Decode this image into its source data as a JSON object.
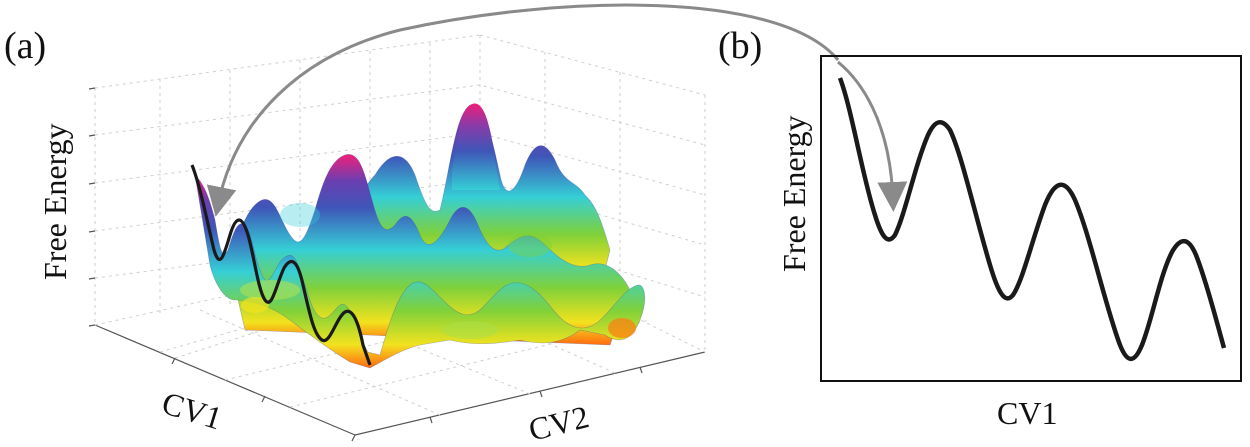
{
  "panel_a": {
    "label": "(a)",
    "y_axis_label": "Free Energy",
    "x_axis_label": "CV1",
    "z_axis_label": "CV2"
  },
  "panel_b": {
    "label": "(b)",
    "y_axis_label": "Free Energy",
    "x_axis_label": "CV1"
  },
  "colors": {
    "curve": "#1a1a1a",
    "arrow": "#8a8a8a",
    "surface_low": "#e8e020",
    "surface_mid": "#33cccc",
    "surface_high": "#3b3ca8",
    "surface_peak": "#e8207a"
  }
}
